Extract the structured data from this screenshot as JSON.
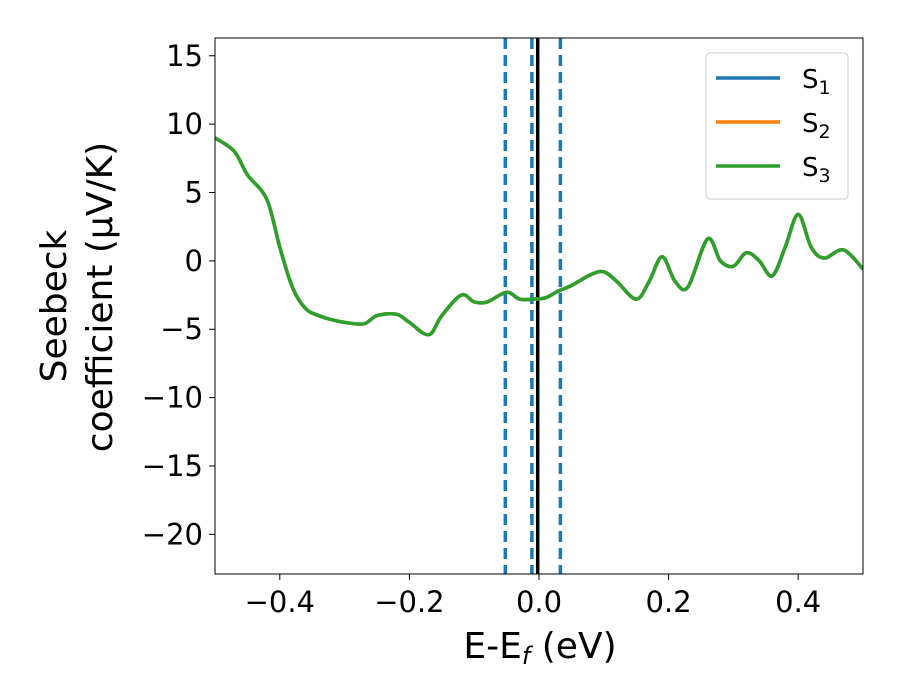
{
  "chart_data": {
    "type": "line",
    "title": "",
    "xlabel": "E-E",
    "xlabel_sub": "f",
    "xlabel_unit": " (eV)",
    "ylabel_line1": "Seebeck",
    "ylabel_line2": "coefficient  (μV/K)",
    "xlim": [
      -0.5,
      0.5
    ],
    "ylim": [
      -22.9,
      16.3
    ],
    "xticks": [
      -0.4,
      -0.2,
      0.0,
      0.2,
      0.4
    ],
    "xtick_labels": [
      "−0.4",
      "−0.2",
      "0.0",
      "0.2",
      "0.4"
    ],
    "yticks": [
      15,
      10,
      5,
      0,
      -5,
      -10,
      -15,
      -20
    ],
    "ytick_labels": [
      "15",
      "10",
      "5",
      "0",
      "−5",
      "−10",
      "−15",
      "−20"
    ],
    "legend_position": "top-right",
    "vlines": [
      {
        "x": -0.052,
        "style": "dashed",
        "color": "#1f77b4"
      },
      {
        "x": -0.011,
        "style": "dashed",
        "color": "#1f77b4"
      },
      {
        "x": -0.002,
        "style": "solid",
        "color": "#000000"
      },
      {
        "x": 0.033,
        "style": "dashed",
        "color": "#1f77b4"
      }
    ],
    "series": [
      {
        "name": "S",
        "sub": "1",
        "color": "#1f77b4",
        "shared_curve": true
      },
      {
        "name": "S",
        "sub": "2",
        "color": "#ff7f0e",
        "shared_curve": true
      },
      {
        "name": "S",
        "sub": "3",
        "color": "#2ca02c",
        "shared_curve": true
      }
    ],
    "x": [
      -0.5,
      -0.47,
      -0.45,
      -0.42,
      -0.4,
      -0.38,
      -0.36,
      -0.34,
      -0.32,
      -0.3,
      -0.27,
      -0.25,
      -0.22,
      -0.2,
      -0.17,
      -0.15,
      -0.12,
      -0.1,
      -0.08,
      -0.05,
      -0.03,
      -0.01,
      0.01,
      0.03,
      0.05,
      0.08,
      0.1,
      0.12,
      0.15,
      0.17,
      0.19,
      0.21,
      0.23,
      0.26,
      0.28,
      0.3,
      0.32,
      0.34,
      0.36,
      0.38,
      0.4,
      0.42,
      0.44,
      0.47,
      0.5
    ],
    "y": [
      9.0,
      8.0,
      6.3,
      4.5,
      1.0,
      -2.0,
      -3.5,
      -4.0,
      -4.3,
      -4.5,
      -4.6,
      -4.0,
      -3.9,
      -4.5,
      -5.4,
      -4.0,
      -2.5,
      -3.0,
      -3.0,
      -2.3,
      -2.8,
      -2.8,
      -2.7,
      -2.2,
      -1.8,
      -1.0,
      -0.8,
      -1.5,
      -2.8,
      -1.5,
      0.3,
      -1.5,
      -1.9,
      1.6,
      0.0,
      -0.4,
      0.6,
      0.0,
      -1.1,
      1.0,
      3.4,
      1.0,
      0.2,
      0.8,
      -0.6
    ]
  }
}
